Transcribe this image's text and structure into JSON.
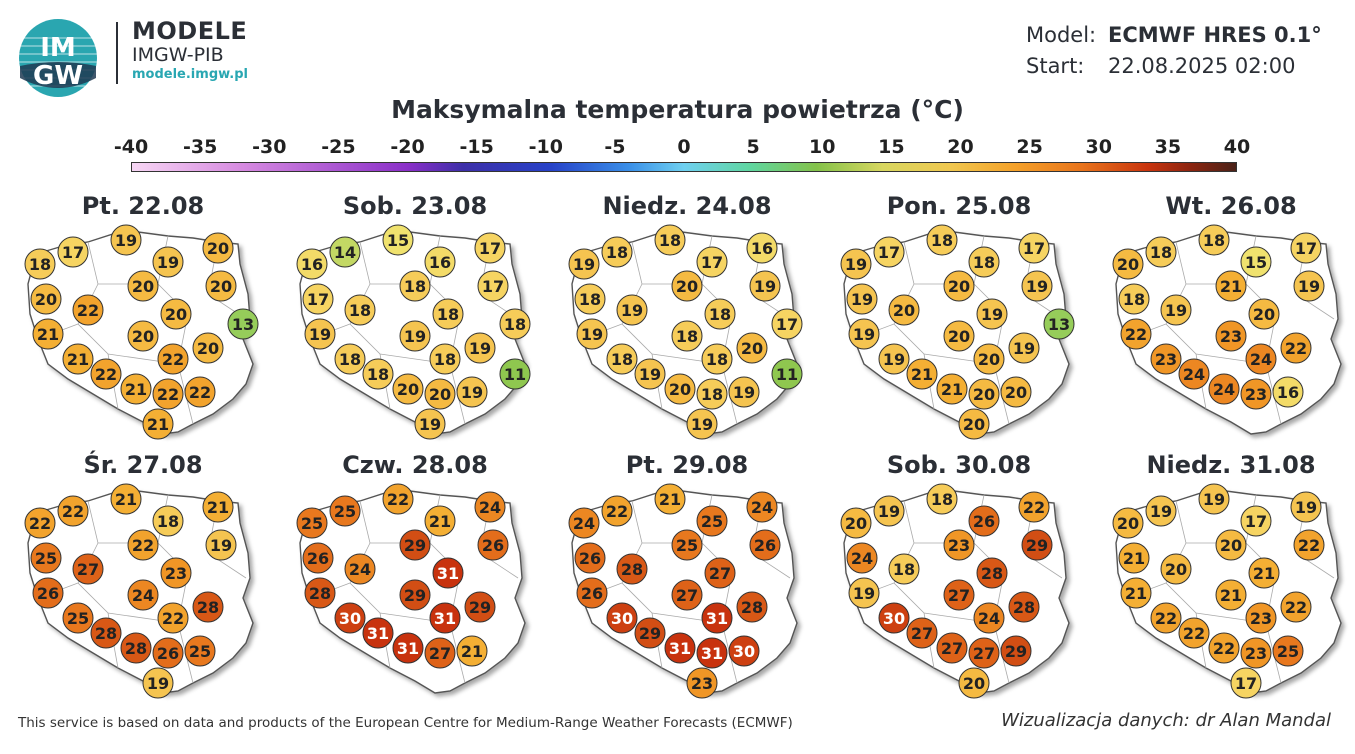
{
  "brand": {
    "logo_text_top": "IM",
    "logo_text_bottom": "GW",
    "name": "MODELE",
    "org": "IMGW-PIB",
    "url": "modele.imgw.pl"
  },
  "model": {
    "model_label": "Model:",
    "model_value": "ECMWF HRES 0.1°",
    "start_label": "Start:",
    "start_value": "22.08.2025 02:00"
  },
  "title": "Maksymalna temperatura powietrza (°C)",
  "scale": {
    "labels": [
      "-40",
      "-35",
      "-30",
      "-25",
      "-20",
      "-15",
      "-10",
      "-5",
      "0",
      "5",
      "10",
      "15",
      "20",
      "25",
      "30",
      "35",
      "40"
    ]
  },
  "panels": [
    {
      "title": "Pt. 22.08",
      "values": [
        18,
        17,
        19,
        20,
        19,
        20,
        20,
        22,
        20,
        20,
        21,
        20,
        20,
        21,
        22,
        22,
        21,
        22,
        22,
        21,
        13
      ]
    },
    {
      "title": "Sob. 23.08",
      "values": [
        16,
        14,
        15,
        17,
        16,
        17,
        17,
        18,
        18,
        18,
        19,
        19,
        19,
        18,
        18,
        18,
        20,
        20,
        19,
        19,
        18,
        11
      ]
    },
    {
      "title": "Niedz. 24.08",
      "values": [
        19,
        18,
        18,
        16,
        17,
        19,
        18,
        19,
        20,
        18,
        19,
        18,
        20,
        18,
        18,
        19,
        20,
        18,
        19,
        19,
        17,
        11
      ]
    },
    {
      "title": "Pon. 25.08",
      "values": [
        19,
        17,
        18,
        17,
        18,
        19,
        19,
        20,
        20,
        19,
        19,
        20,
        19,
        19,
        20,
        21,
        21,
        20,
        20,
        20,
        13
      ]
    },
    {
      "title": "Wt. 26.08",
      "values": [
        20,
        18,
        18,
        17,
        15,
        19,
        18,
        19,
        21,
        20,
        22,
        23,
        22,
        23,
        24,
        24,
        24,
        23,
        16
      ]
    },
    {
      "title": "Śr. 27.08",
      "values": [
        22,
        22,
        21,
        21,
        18,
        19,
        25,
        27,
        22,
        23,
        26,
        24,
        28,
        25,
        22,
        28,
        28,
        26,
        25,
        19
      ]
    },
    {
      "title": "Czw. 28.08",
      "values": [
        25,
        25,
        22,
        24,
        21,
        26,
        26,
        24,
        29,
        31,
        28,
        29,
        29,
        30,
        31,
        31,
        31,
        27,
        21
      ]
    },
    {
      "title": "Pt. 29.08",
      "values": [
        24,
        22,
        21,
        24,
        25,
        26,
        26,
        28,
        25,
        27,
        26,
        27,
        28,
        30,
        31,
        29,
        31,
        31,
        30,
        23
      ]
    },
    {
      "title": "Sob. 30.08",
      "values": [
        20,
        19,
        18,
        22,
        26,
        29,
        24,
        18,
        23,
        28,
        19,
        27,
        28,
        30,
        24,
        27,
        27,
        27,
        29,
        20
      ]
    },
    {
      "title": "Niedz. 31.08",
      "values": [
        20,
        19,
        19,
        19,
        17,
        22,
        21,
        20,
        20,
        21,
        21,
        21,
        22,
        22,
        23,
        22,
        22,
        23,
        25,
        17
      ]
    }
  ],
  "footer": "This service is based on data and products of the European Centre for Medium-Range Weather Forecasts (ECMWF)",
  "credit": "Wizualizacja danych: dr Alan Mandal",
  "colors": {
    "dark_text": "#2b2f36",
    "teal": "#29a7b2"
  }
}
